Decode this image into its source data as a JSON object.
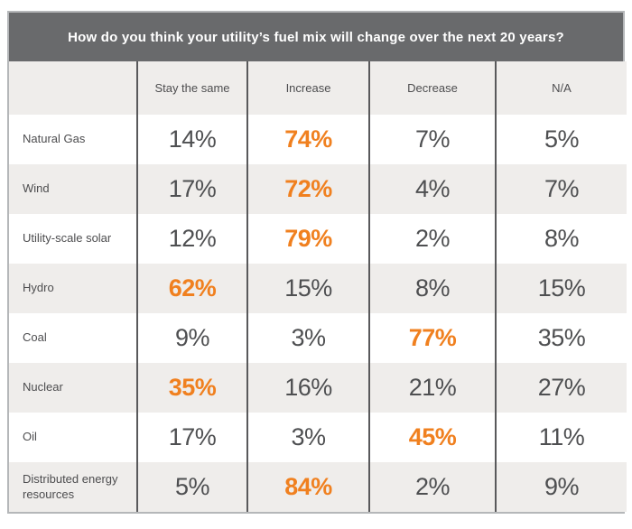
{
  "colors": {
    "accent_orange": "#F0801F",
    "title_bar_gray": "#696A6C",
    "alt_row_gray": "#EFEDEB",
    "divider_gray": "#59595B",
    "outer_border_gray": "#B5B7B9",
    "text_dark": "#4D4D4F"
  },
  "chart_data": {
    "type": "table",
    "title": "How do you think your utility’s fuel mix will change over the next 20 years?",
    "columns": [
      "Stay the same",
      "Increase",
      "Decrease",
      "N/A"
    ],
    "rows": [
      {
        "label": "Natural Gas",
        "values": [
          "14%",
          "74%",
          "7%",
          "5%"
        ],
        "highlight_index": 1
      },
      {
        "label": "Wind",
        "values": [
          "17%",
          "72%",
          "4%",
          "7%"
        ],
        "highlight_index": 1
      },
      {
        "label": "Utility-scale solar",
        "values": [
          "12%",
          "79%",
          "2%",
          "8%"
        ],
        "highlight_index": 1
      },
      {
        "label": "Hydro",
        "values": [
          "62%",
          "15%",
          "8%",
          "15%"
        ],
        "highlight_index": 0
      },
      {
        "label": "Coal",
        "values": [
          "9%",
          "3%",
          "77%",
          "35%"
        ],
        "highlight_index": 2
      },
      {
        "label": "Nuclear",
        "values": [
          "35%",
          "16%",
          "21%",
          "27%"
        ],
        "highlight_index": 0
      },
      {
        "label": "Oil",
        "values": [
          "17%",
          "3%",
          "45%",
          "11%"
        ],
        "highlight_index": 2
      },
      {
        "label": "Distributed energy resources",
        "values": [
          "5%",
          "84%",
          "2%",
          "9%"
        ],
        "highlight_index": 1
      }
    ]
  }
}
